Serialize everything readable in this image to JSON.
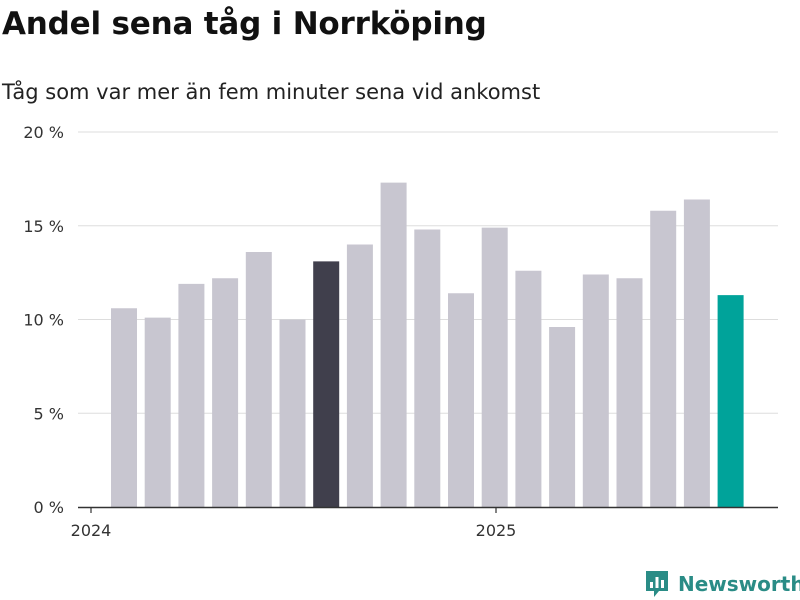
{
  "chart_data": {
    "type": "bar",
    "title": "Andel sena tåg i Norrköping",
    "subtitle": "Tåg som var mer än fem minuter sena vid ankomst",
    "xlabel": "",
    "ylabel": "",
    "ylim": [
      0,
      20
    ],
    "yticks": [
      "0 %",
      "5 %",
      "10 %",
      "15 %",
      "20 %"
    ],
    "xtick_labels": [
      "2024",
      "2025"
    ],
    "grid": true,
    "values": [
      10.6,
      10.1,
      11.9,
      12.2,
      13.6,
      10.0,
      13.1,
      14.0,
      17.3,
      14.8,
      11.4,
      14.9,
      12.6,
      9.6,
      12.4,
      12.2,
      15.8,
      16.4,
      11.3
    ],
    "highlight": {
      "dark_index": 6,
      "accent_index": 18
    },
    "colors": {
      "bar": "#c8c6d0",
      "dark": "#403f4c",
      "accent": "#00a39a",
      "grid": "#dddddd",
      "axis": "#333333"
    }
  },
  "brand": {
    "name": "Newsworthy",
    "icon": "newsworthy-logo-icon",
    "color": "#2a8c86"
  }
}
